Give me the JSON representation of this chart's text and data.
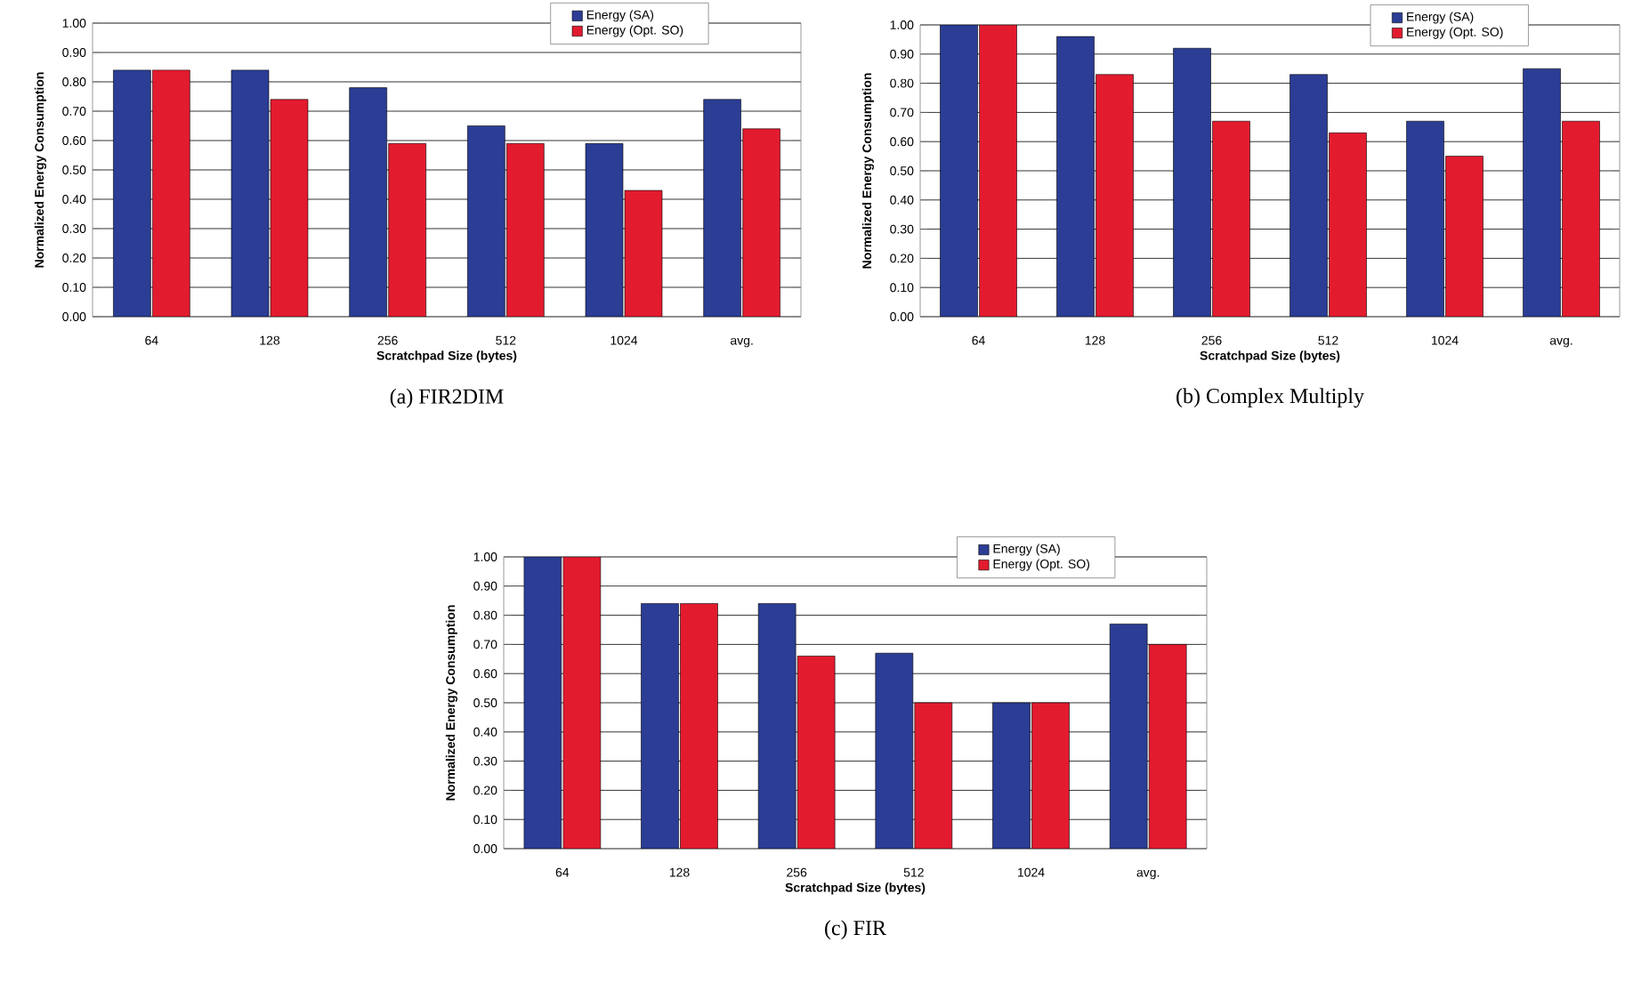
{
  "chart_data": [
    {
      "type": "bar",
      "title": "(a) FIR2DIM",
      "xlabel": "Scratchpad Size (bytes)",
      "ylabel": "Normalized Energy Consumption",
      "categories": [
        "64",
        "128",
        "256",
        "512",
        "1024",
        "avg."
      ],
      "series": [
        {
          "name": "Energy (SA)",
          "color": "#2b3d94",
          "values": [
            0.84,
            0.84,
            0.78,
            0.65,
            0.59,
            0.74
          ]
        },
        {
          "name": "Energy (Opt. SO)",
          "color": "#e31b2f",
          "values": [
            0.84,
            0.74,
            0.59,
            0.59,
            0.43,
            0.64
          ]
        }
      ],
      "ylim": [
        0,
        1
      ],
      "yticks": [
        {
          "value": 0,
          "label": "0.00"
        },
        {
          "value": 0.1,
          "label": "0.10"
        },
        {
          "value": 0.2,
          "label": "0.20"
        },
        {
          "value": 0.3,
          "label": "0.30"
        },
        {
          "value": 0.4,
          "label": "0.40"
        },
        {
          "value": 0.5,
          "label": "0.50"
        },
        {
          "value": 0.6,
          "label": "0.60"
        },
        {
          "value": 0.7,
          "label": "0.70"
        },
        {
          "value": 0.8,
          "label": "0.80"
        },
        {
          "value": 0.9,
          "label": "0.90"
        },
        {
          "value": 1,
          "label": "1.00"
        }
      ],
      "grid": "y",
      "legend": "top right"
    },
    {
      "type": "bar",
      "title": "(b) Complex Multiply",
      "xlabel": "Scratchpad Size (bytes)",
      "ylabel": "Normalized Energy Consumption",
      "categories": [
        "64",
        "128",
        "256",
        "512",
        "1024",
        "avg."
      ],
      "series": [
        {
          "name": "Energy (SA)",
          "color": "#2b3d94",
          "values": [
            1.0,
            0.96,
            0.92,
            0.83,
            0.67,
            0.85
          ]
        },
        {
          "name": "Energy (Opt. SO)",
          "color": "#e31b2f",
          "values": [
            1.0,
            0.83,
            0.67,
            0.63,
            0.55,
            0.67
          ]
        }
      ],
      "ylim": [
        0,
        1
      ],
      "yticks": [
        {
          "value": 0,
          "label": "0.00"
        },
        {
          "value": 0.1,
          "label": "0.10"
        },
        {
          "value": 0.2,
          "label": "0.20"
        },
        {
          "value": 0.3,
          "label": "0.30"
        },
        {
          "value": 0.4,
          "label": "0.40"
        },
        {
          "value": 0.5,
          "label": "0.50"
        },
        {
          "value": 0.6,
          "label": "0.60"
        },
        {
          "value": 0.7,
          "label": "0.70"
        },
        {
          "value": 0.8,
          "label": "0.80"
        },
        {
          "value": 0.9,
          "label": "0.90"
        },
        {
          "value": 1,
          "label": "1.00"
        }
      ],
      "grid": "y",
      "legend": "top right"
    },
    {
      "type": "bar",
      "title": "(c) FIR",
      "xlabel": "Scratchpad Size (bytes)",
      "ylabel": "Normalized Energy Consumption",
      "categories": [
        "64",
        "128",
        "256",
        "512",
        "1024",
        "avg."
      ],
      "series": [
        {
          "name": "Energy (SA)",
          "color": "#2b3d94",
          "values": [
            1.0,
            0.84,
            0.84,
            0.67,
            0.5,
            0.77
          ]
        },
        {
          "name": "Energy (Opt. SO)",
          "color": "#e31b2f",
          "values": [
            1.0,
            0.84,
            0.66,
            0.5,
            0.5,
            0.7
          ]
        }
      ],
      "ylim": [
        0,
        1
      ],
      "yticks": [
        {
          "value": 0,
          "label": "0.00"
        },
        {
          "value": 0.1,
          "label": "0.10"
        },
        {
          "value": 0.2,
          "label": "0.20"
        },
        {
          "value": 0.3,
          "label": "0.30"
        },
        {
          "value": 0.4,
          "label": "0.40"
        },
        {
          "value": 0.5,
          "label": "0.50"
        },
        {
          "value": 0.6,
          "label": "0.60"
        },
        {
          "value": 0.7,
          "label": "0.70"
        },
        {
          "value": 0.8,
          "label": "0.80"
        },
        {
          "value": 0.9,
          "label": "0.90"
        },
        {
          "value": 1,
          "label": "1.00"
        }
      ],
      "grid": "y",
      "legend": "top right"
    }
  ]
}
